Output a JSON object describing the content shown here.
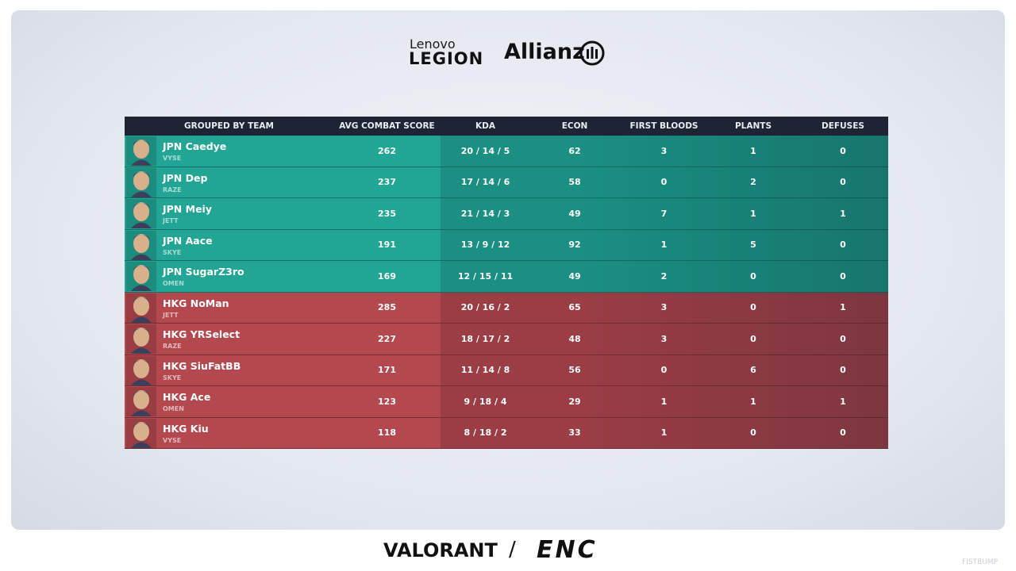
{
  "sponsors": {
    "top_left_small": "Lenovo",
    "top_left_big": "LEGION",
    "top_right": "Allianz"
  },
  "footer": {
    "left": "VALORANT",
    "separator": "/",
    "right": "ENC",
    "watermark": "FISTBUMP"
  },
  "table": {
    "headers": [
      "GROUPED BY TEAM",
      "AVG COMBAT SCORE",
      "KDA",
      "ECON",
      "FIRST BLOODS",
      "PLANTS",
      "DEFUSES"
    ],
    "rows": [
      {
        "team": "JPN",
        "player": "JPN Caedye",
        "agent": "VYSE",
        "stats": [
          262,
          "20 / 14 / 5",
          62,
          3,
          1,
          0
        ]
      },
      {
        "team": "JPN",
        "player": "JPN Dep",
        "agent": "RAZE",
        "stats": [
          237,
          "17 / 14 / 6",
          58,
          0,
          2,
          0
        ]
      },
      {
        "team": "JPN",
        "player": "JPN Meiy",
        "agent": "JETT",
        "stats": [
          235,
          "21 / 14 / 3",
          49,
          7,
          1,
          1
        ]
      },
      {
        "team": "JPN",
        "player": "JPN Aace",
        "agent": "SKYE",
        "stats": [
          191,
          "13 / 9 / 12",
          92,
          1,
          5,
          0
        ]
      },
      {
        "team": "JPN",
        "player": "JPN SugarZ3ro",
        "agent": "OMEN",
        "stats": [
          169,
          "12 / 15 / 11",
          49,
          2,
          0,
          0
        ]
      },
      {
        "team": "HKG",
        "player": "HKG NoMan",
        "agent": "JETT",
        "stats": [
          285,
          "20 / 16 / 2",
          65,
          3,
          0,
          1
        ]
      },
      {
        "team": "HKG",
        "player": "HKG YRSelect",
        "agent": "RAZE",
        "stats": [
          227,
          "18 / 17 / 2",
          48,
          3,
          0,
          0
        ]
      },
      {
        "team": "HKG",
        "player": "HKG SiuFatBB",
        "agent": "SKYE",
        "stats": [
          171,
          "11 / 14 / 8",
          56,
          0,
          6,
          0
        ]
      },
      {
        "team": "HKG",
        "player": "HKG Ace",
        "agent": "OMEN",
        "stats": [
          123,
          "9 / 18 / 4",
          29,
          1,
          1,
          1
        ]
      },
      {
        "team": "HKG",
        "player": "HKG Kiu",
        "agent": "VYSE",
        "stats": [
          118,
          "8 / 18 / 2",
          33,
          1,
          0,
          0
        ]
      }
    ]
  }
}
